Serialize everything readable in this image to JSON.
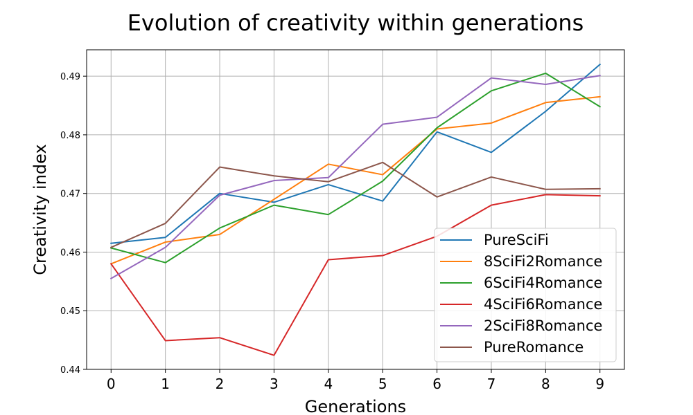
{
  "chart_data": {
    "type": "line",
    "title": "Evolution of creativity within generations",
    "xlabel": "Generations",
    "ylabel": "Creativity index",
    "x": [
      0,
      1,
      2,
      3,
      4,
      5,
      6,
      7,
      8,
      9
    ],
    "xlim": [
      -0.45,
      9.45
    ],
    "ylim": [
      0.44,
      0.4945
    ],
    "xticks": [
      "0",
      "1",
      "2",
      "3",
      "4",
      "5",
      "6",
      "7",
      "8",
      "9"
    ],
    "yticks": [
      "0.44",
      "0.45",
      "0.46",
      "0.47",
      "0.48",
      "0.49"
    ],
    "grid": true,
    "legend_position": "lower-right",
    "series": [
      {
        "name": "PureSciFi",
        "color": "#1f77b4",
        "values": [
          0.4615,
          0.4625,
          0.47,
          0.4685,
          0.4715,
          0.4687,
          0.4805,
          0.477,
          0.484,
          0.492
        ]
      },
      {
        "name": "8SciFi2Romance",
        "color": "#ff7f0e",
        "values": [
          0.458,
          0.4617,
          0.463,
          0.469,
          0.475,
          0.4732,
          0.481,
          0.482,
          0.4855,
          0.4865
        ]
      },
      {
        "name": "6SciFi4Romance",
        "color": "#2ca02c",
        "values": [
          0.4607,
          0.4582,
          0.4641,
          0.468,
          0.4664,
          0.4721,
          0.4812,
          0.4875,
          0.4905,
          0.4848
        ]
      },
      {
        "name": "4SciFi6Romance",
        "color": "#d62728",
        "values": [
          0.458,
          0.4449,
          0.4454,
          0.4424,
          0.4587,
          0.4594,
          0.4627,
          0.468,
          0.4698,
          0.4696
        ]
      },
      {
        "name": "2SciFi8Romance",
        "color": "#9467bd",
        "values": [
          0.4555,
          0.4608,
          0.4697,
          0.4722,
          0.4727,
          0.4818,
          0.483,
          0.4897,
          0.4886,
          0.4901
        ]
      },
      {
        "name": "PureRomance",
        "color": "#8c564b",
        "values": [
          0.4608,
          0.4649,
          0.4745,
          0.473,
          0.472,
          0.4753,
          0.4694,
          0.4728,
          0.4707,
          0.4708
        ]
      }
    ]
  }
}
